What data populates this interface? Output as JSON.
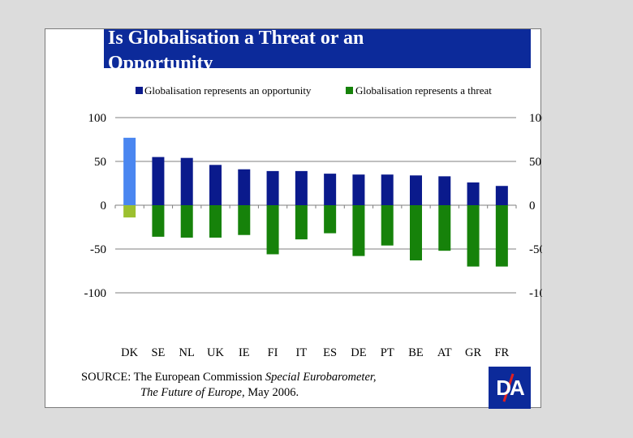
{
  "title": "Is Globalisation a Threat or an Opportunity",
  "source_prefix": "SOURCE: The European Commission ",
  "source_italic1": "Special Eurobarometer,",
  "source_italic2": "The Future of Europe,",
  "source_suffix": " May 2006.",
  "logo_text": "DA",
  "colors": {
    "opportunity": "#0a1a8c",
    "threat": "#16820a",
    "dk_opportunity": "#4a86f0",
    "dk_threat": "#9cc030",
    "title_bg": "#0c2a9a"
  },
  "chart_data": {
    "type": "bar",
    "categories": [
      "DK",
      "SE",
      "NL",
      "UK",
      "IE",
      "FI",
      "IT",
      "ES",
      "DE",
      "PT",
      "BE",
      "AT",
      "GR",
      "FR"
    ],
    "series": [
      {
        "name": "Globalisation represents an opportunity",
        "values": [
          77,
          55,
          54,
          46,
          41,
          39,
          39,
          36,
          35,
          35,
          34,
          33,
          26,
          22
        ]
      },
      {
        "name": "Globalisation represents a threat",
        "values": [
          -14,
          -36,
          -37,
          -37,
          -34,
          -56,
          -39,
          -32,
          -58,
          -46,
          -63,
          -52,
          -70,
          -70
        ]
      }
    ],
    "yticks": [
      100,
      50,
      0,
      -50,
      -100
    ],
    "ylim": [
      -100,
      100
    ],
    "xlabel": "",
    "ylabel": "",
    "legend_position": "top-center",
    "grid": false
  }
}
